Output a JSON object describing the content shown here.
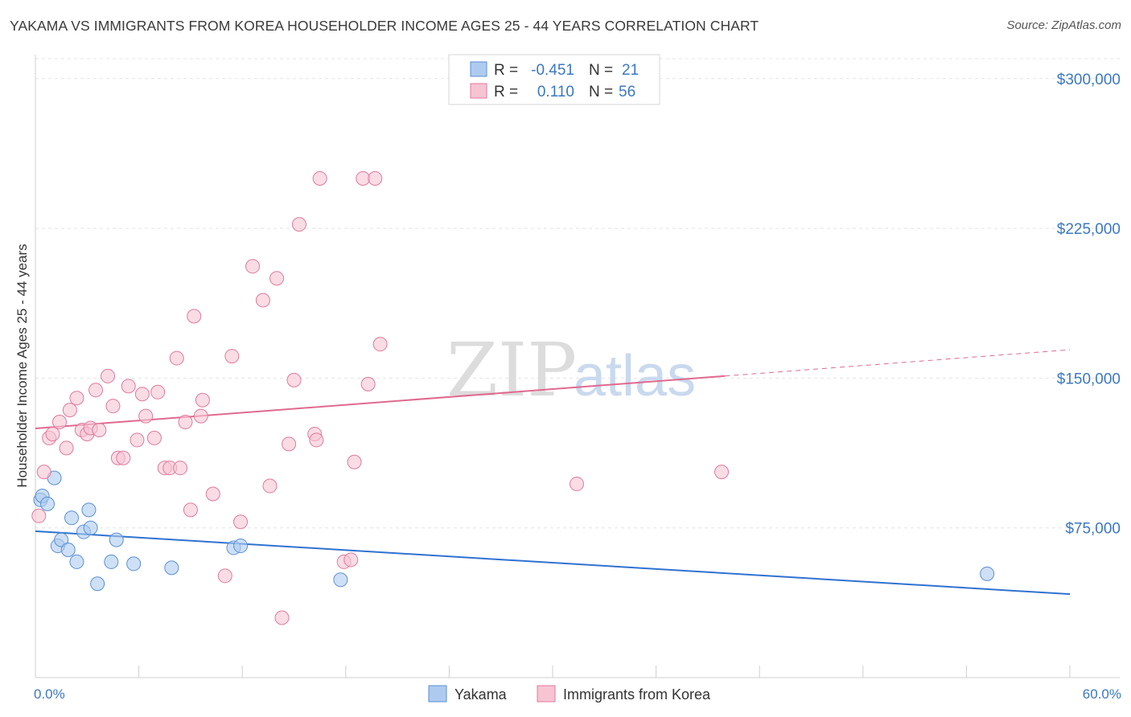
{
  "title": "YAKAMA VS IMMIGRANTS FROM KOREA HOUSEHOLDER INCOME AGES 25 - 44 YEARS CORRELATION CHART",
  "source": "Source: ZipAtlas.com",
  "watermark": {
    "part1": "ZIP",
    "part2": "atlas"
  },
  "legend": {
    "row1": {
      "r_label": "R =",
      "r_value": "-0.451",
      "n_label": "N =",
      "n_value": "21"
    },
    "row2": {
      "r_label": "R =",
      "r_value": "0.110",
      "n_label": "N =",
      "n_value": "56"
    }
  },
  "bottom_legend": {
    "series1": "Yakama",
    "series2": "Immigrants from Korea"
  },
  "chart_data": {
    "type": "scatter",
    "title": "YAKAMA VS IMMIGRANTS FROM KOREA HOUSEHOLDER INCOME AGES 25 - 44 YEARS CORRELATION CHART",
    "xlabel": "",
    "ylabel": "Householder Income Ages 25 - 44 years",
    "xlim": [
      0,
      60
    ],
    "ylim": [
      0,
      312000
    ],
    "x_tick_labels": {
      "left": "0.0%",
      "right": "60.0%"
    },
    "y_ticks": [
      75000,
      150000,
      225000,
      300000
    ],
    "y_tick_labels": [
      "$75,000",
      "$150,000",
      "$225,000",
      "$300,000"
    ],
    "grid": true,
    "colors": {
      "yakama_fill": "#aecbef",
      "yakama_stroke": "#5b8fd6",
      "yakama_line": "#2f72d1",
      "korea_fill": "#f7c4d3",
      "korea_stroke": "#e07a9c",
      "korea_line": "#e0698f",
      "tick_label": "#3b78c2"
    },
    "series": [
      {
        "name": "Yakama",
        "r": -0.451,
        "n": 21,
        "trend": {
          "x0": 0,
          "y0": 73300,
          "x1": 60,
          "y1": 41800,
          "solid_until": 60
        },
        "points": [
          [
            0.3,
            89000
          ],
          [
            0.4,
            91000
          ],
          [
            0.7,
            87000
          ],
          [
            1.1,
            100000
          ],
          [
            1.3,
            66000
          ],
          [
            1.5,
            69000
          ],
          [
            1.9,
            64000
          ],
          [
            2.1,
            80000
          ],
          [
            2.4,
            58000
          ],
          [
            2.8,
            73000
          ],
          [
            3.1,
            84000
          ],
          [
            3.2,
            75000
          ],
          [
            3.6,
            47000
          ],
          [
            4.4,
            58000
          ],
          [
            4.7,
            69000
          ],
          [
            5.7,
            57000
          ],
          [
            7.9,
            55000
          ],
          [
            11.5,
            65000
          ],
          [
            11.9,
            66000
          ],
          [
            17.7,
            49000
          ],
          [
            55.2,
            52000
          ]
        ]
      },
      {
        "name": "Immigrants from Korea",
        "r": 0.11,
        "n": 56,
        "trend": {
          "x0": 0,
          "y0": 124800,
          "x1": 60,
          "y1": 164200,
          "solid_until": 40
        },
        "points": [
          [
            0.2,
            81000
          ],
          [
            0.5,
            103000
          ],
          [
            0.8,
            120000
          ],
          [
            1.0,
            122000
          ],
          [
            1.4,
            128000
          ],
          [
            1.8,
            115000
          ],
          [
            2.0,
            134000
          ],
          [
            2.4,
            140000
          ],
          [
            2.7,
            124000
          ],
          [
            3.0,
            122000
          ],
          [
            3.2,
            125000
          ],
          [
            3.5,
            144000
          ],
          [
            3.7,
            124000
          ],
          [
            4.2,
            151000
          ],
          [
            4.5,
            136000
          ],
          [
            4.8,
            110000
          ],
          [
            5.1,
            110000
          ],
          [
            5.4,
            146000
          ],
          [
            5.9,
            119000
          ],
          [
            6.2,
            142000
          ],
          [
            6.4,
            131000
          ],
          [
            6.9,
            120000
          ],
          [
            7.1,
            143000
          ],
          [
            7.5,
            105000
          ],
          [
            7.8,
            105000
          ],
          [
            8.2,
            160000
          ],
          [
            8.4,
            105000
          ],
          [
            8.7,
            128000
          ],
          [
            9.0,
            84000
          ],
          [
            9.2,
            181000
          ],
          [
            9.6,
            131000
          ],
          [
            9.7,
            139000
          ],
          [
            10.3,
            92000
          ],
          [
            11.0,
            51000
          ],
          [
            11.4,
            161000
          ],
          [
            11.9,
            78000
          ],
          [
            12.6,
            206000
          ],
          [
            13.2,
            189000
          ],
          [
            13.6,
            96000
          ],
          [
            14.0,
            200000
          ],
          [
            14.3,
            30000
          ],
          [
            14.7,
            117000
          ],
          [
            15.0,
            149000
          ],
          [
            15.3,
            227000
          ],
          [
            16.2,
            122000
          ],
          [
            16.3,
            119000
          ],
          [
            16.5,
            250000
          ],
          [
            17.9,
            58000
          ],
          [
            18.3,
            59000
          ],
          [
            18.5,
            108000
          ],
          [
            19.0,
            250000
          ],
          [
            19.3,
            147000
          ],
          [
            19.7,
            250000
          ],
          [
            20.0,
            167000
          ],
          [
            31.4,
            97000
          ],
          [
            39.8,
            103000
          ]
        ]
      }
    ]
  }
}
